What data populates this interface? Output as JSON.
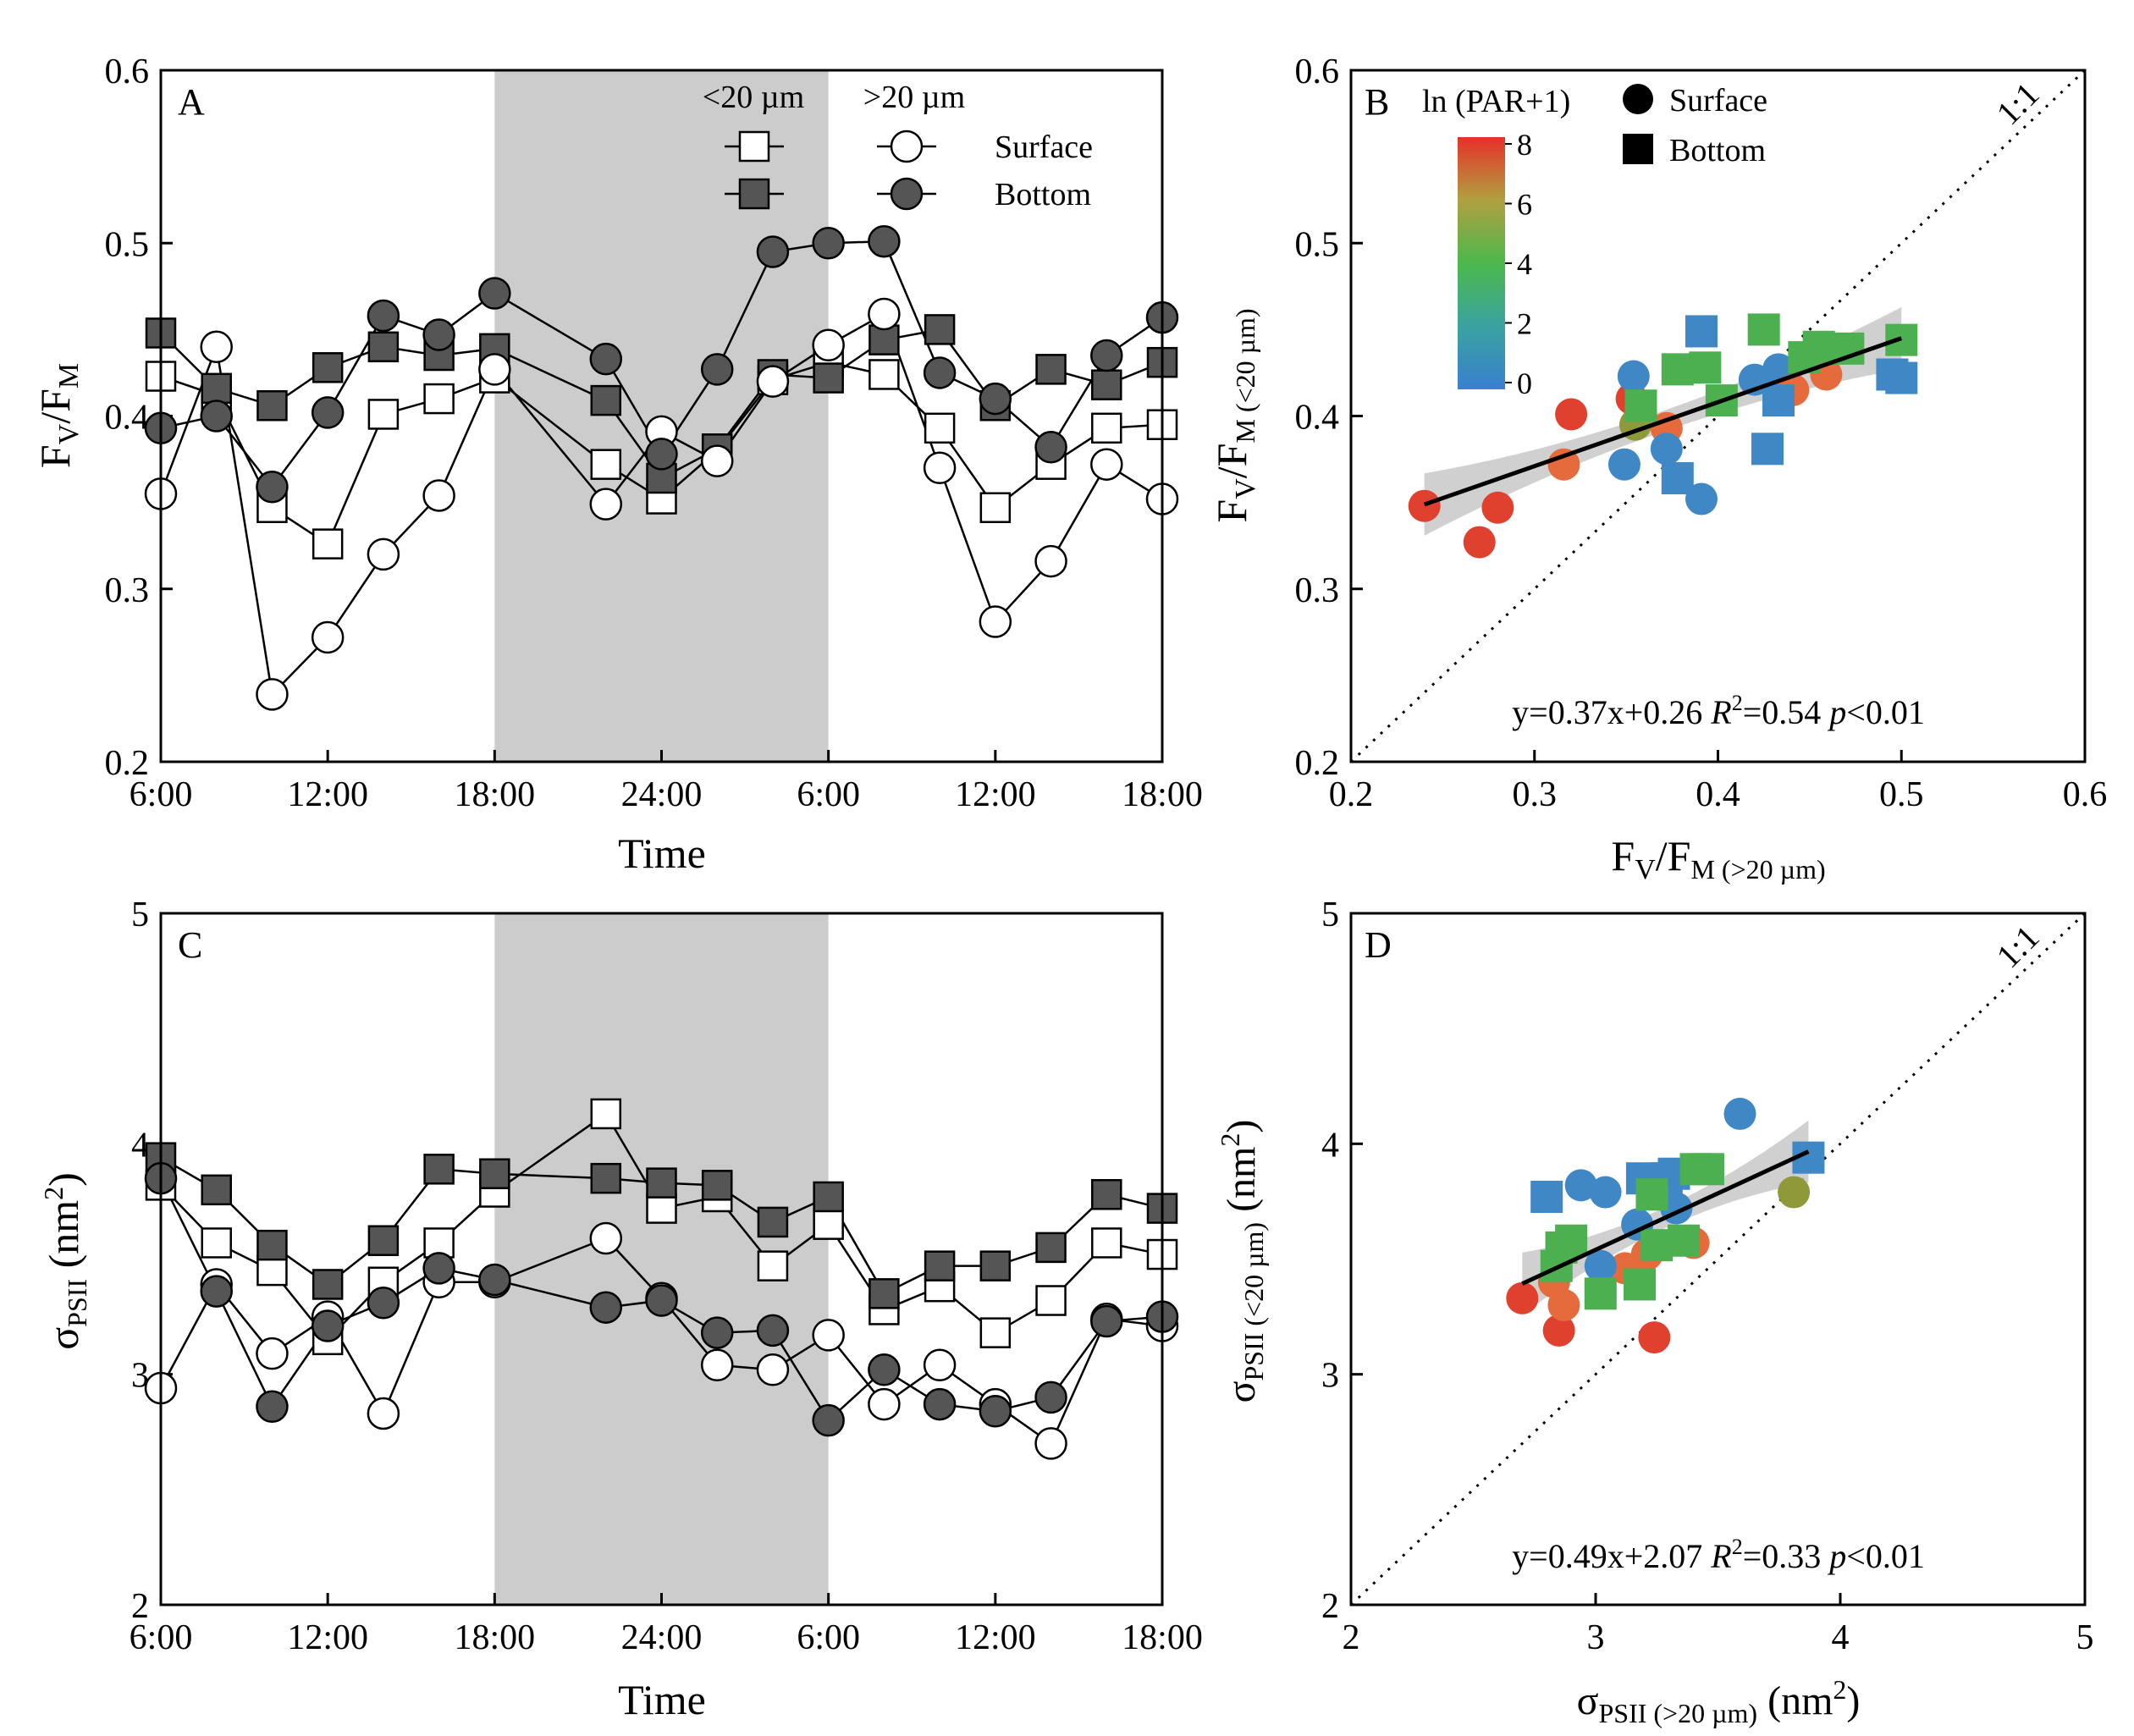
{
  "figure": {
    "legend_a": {
      "small_header": "<20 µm",
      "large_header": ">20 µm",
      "surface": "Surface",
      "bottom": "Bottom"
    },
    "legend_b": {
      "colorbar_title": "ln (PAR+1)",
      "colorbar_ticks": [
        "0",
        "2",
        "4",
        "6",
        "8"
      ],
      "surface": "Surface",
      "bottom": "Bottom"
    },
    "colors": {
      "shade": "#cccccc",
      "dark_marker": "#555555",
      "white_marker": "#ffffff",
      "blue": "#3f88c5",
      "green": "#4caf50",
      "orange": "#e56b3c",
      "red": "#e0402e",
      "olive": "#8e9a3a",
      "band": "#c8c8c8"
    }
  },
  "chart_data": [
    {
      "panel": "A",
      "type": "line",
      "ylabel": "FV/FM",
      "xlabel": "Time",
      "ylim": [
        0.2,
        0.6
      ],
      "yticks": [
        "0.2",
        "0.3",
        "0.4",
        "0.5",
        "0.6"
      ],
      "xticks": [
        "6:00",
        "12:00",
        "18:00",
        "24:00",
        "6:00",
        "12:00",
        "18:00"
      ],
      "x_hours": [
        6,
        8,
        10,
        12,
        14,
        16,
        18,
        22,
        24,
        26,
        28,
        30,
        32,
        34,
        36,
        38,
        40,
        42
      ],
      "night_shade_hours": [
        18,
        30
      ],
      "series": [
        {
          "name": "<20 µm Surface",
          "marker": "square",
          "fill": "white",
          "values": [
            0.423,
            0.412,
            0.347,
            0.326,
            0.401,
            0.41,
            0.422,
            0.372,
            0.352,
            0.38,
            0.421,
            0.431,
            0.424,
            0.393,
            0.347,
            0.372,
            0.393,
            0.395
          ]
        },
        {
          "name": "<20 µm Bottom",
          "marker": "square",
          "fill": "dark",
          "values": [
            0.448,
            0.416,
            0.406,
            0.428,
            0.44,
            0.435,
            0.439,
            0.409,
            0.364,
            0.381,
            0.424,
            0.422,
            0.444,
            0.45,
            0.406,
            0.427,
            0.418,
            0.431
          ]
        },
        {
          "name": ">20 µm Surface",
          "marker": "circle",
          "fill": "white",
          "values": [
            0.355,
            0.44,
            0.239,
            0.272,
            0.32,
            0.354,
            0.427,
            0.349,
            0.391,
            0.374,
            0.42,
            0.441,
            0.459,
            0.37,
            0.281,
            0.316,
            0.372,
            0.352
          ]
        },
        {
          "name": ">20 µm Bottom",
          "marker": "circle",
          "fill": "dark",
          "values": [
            0.393,
            0.4,
            0.359,
            0.402,
            0.458,
            0.447,
            0.471,
            0.433,
            0.378,
            0.427,
            0.495,
            0.5,
            0.501,
            0.425,
            0.41,
            0.382,
            0.435,
            0.457
          ]
        }
      ]
    },
    {
      "panel": "B",
      "type": "scatter",
      "xlabel": "FV/FM (>20 µm)",
      "ylabel": "FV/FM (<20 µm)",
      "xlim": [
        0.2,
        0.6
      ],
      "ylim": [
        0.2,
        0.6
      ],
      "xticks": [
        "0.2",
        "0.3",
        "0.4",
        "0.5",
        "0.6"
      ],
      "yticks": [
        "0.2",
        "0.3",
        "0.4",
        "0.5",
        "0.6"
      ],
      "one_to_one_label": "1:1",
      "fit": {
        "slope": 0.37,
        "intercept": 0.26,
        "x_range": [
          0.24,
          0.5
        ]
      },
      "equation": "y=0.37x+0.26",
      "r2_label": "R",
      "r2_value": "=0.54",
      "p_label": "p",
      "p_value": "<0.01",
      "points": [
        {
          "x": 0.24,
          "y": 0.348,
          "m": "circle",
          "c": "red"
        },
        {
          "x": 0.27,
          "y": 0.327,
          "m": "circle",
          "c": "red"
        },
        {
          "x": 0.28,
          "y": 0.347,
          "m": "circle",
          "c": "red"
        },
        {
          "x": 0.32,
          "y": 0.401,
          "m": "circle",
          "c": "red"
        },
        {
          "x": 0.316,
          "y": 0.372,
          "m": "circle",
          "c": "orange"
        },
        {
          "x": 0.353,
          "y": 0.41,
          "m": "circle",
          "c": "red"
        },
        {
          "x": 0.372,
          "y": 0.393,
          "m": "circle",
          "c": "orange"
        },
        {
          "x": 0.354,
          "y": 0.423,
          "m": "circle",
          "c": "blue"
        },
        {
          "x": 0.349,
          "y": 0.372,
          "m": "circle",
          "c": "blue"
        },
        {
          "x": 0.372,
          "y": 0.381,
          "m": "circle",
          "c": "blue"
        },
        {
          "x": 0.391,
          "y": 0.352,
          "m": "circle",
          "c": "blue"
        },
        {
          "x": 0.42,
          "y": 0.421,
          "m": "circle",
          "c": "blue"
        },
        {
          "x": 0.433,
          "y": 0.427,
          "m": "circle",
          "c": "blue"
        },
        {
          "x": 0.441,
          "y": 0.415,
          "m": "circle",
          "c": "orange"
        },
        {
          "x": 0.459,
          "y": 0.424,
          "m": "circle",
          "c": "orange"
        },
        {
          "x": 0.355,
          "y": 0.395,
          "m": "circle",
          "c": "olive"
        },
        {
          "x": 0.358,
          "y": 0.406,
          "m": "square",
          "c": "green"
        },
        {
          "x": 0.378,
          "y": 0.427,
          "m": "square",
          "c": "green"
        },
        {
          "x": 0.393,
          "y": 0.428,
          "m": "square",
          "c": "green"
        },
        {
          "x": 0.402,
          "y": 0.409,
          "m": "square",
          "c": "green"
        },
        {
          "x": 0.425,
          "y": 0.45,
          "m": "square",
          "c": "green"
        },
        {
          "x": 0.447,
          "y": 0.434,
          "m": "square",
          "c": "green"
        },
        {
          "x": 0.455,
          "y": 0.44,
          "m": "square",
          "c": "green"
        },
        {
          "x": 0.5,
          "y": 0.444,
          "m": "square",
          "c": "green"
        },
        {
          "x": 0.471,
          "y": 0.439,
          "m": "square",
          "c": "green"
        },
        {
          "x": 0.378,
          "y": 0.364,
          "m": "square",
          "c": "blue"
        },
        {
          "x": 0.391,
          "y": 0.449,
          "m": "square",
          "c": "blue"
        },
        {
          "x": 0.433,
          "y": 0.409,
          "m": "square",
          "c": "blue"
        },
        {
          "x": 0.427,
          "y": 0.381,
          "m": "square",
          "c": "blue"
        },
        {
          "x": 0.495,
          "y": 0.424,
          "m": "square",
          "c": "blue"
        },
        {
          "x": 0.5,
          "y": 0.422,
          "m": "square",
          "c": "blue"
        }
      ]
    },
    {
      "panel": "C",
      "type": "line",
      "ylabel": "σPSII (nm2)",
      "xlabel": "Time",
      "ylim": [
        2,
        5
      ],
      "yticks": [
        "2",
        "3",
        "4",
        "5"
      ],
      "xticks": [
        "6:00",
        "12:00",
        "18:00",
        "24:00",
        "6:00",
        "12:00",
        "18:00"
      ],
      "x_hours": [
        6,
        8,
        10,
        12,
        14,
        16,
        18,
        22,
        24,
        26,
        28,
        30,
        32,
        34,
        36,
        38,
        40,
        42
      ],
      "night_shade_hours": [
        18,
        30
      ],
      "series": [
        {
          "name": "<20 µm Surface",
          "marker": "square",
          "fill": "white",
          "values": [
            3.82,
            3.57,
            3.45,
            3.15,
            3.4,
            3.57,
            3.79,
            4.13,
            3.72,
            3.77,
            3.47,
            3.65,
            3.28,
            3.38,
            3.18,
            3.32,
            3.57,
            3.52
          ]
        },
        {
          "name": "<20 µm Bottom",
          "marker": "square",
          "fill": "dark",
          "values": [
            3.94,
            3.8,
            3.56,
            3.39,
            3.58,
            3.89,
            3.87,
            3.85,
            3.83,
            3.82,
            3.66,
            3.77,
            3.35,
            3.47,
            3.47,
            3.55,
            3.78,
            3.72
          ]
        },
        {
          "name": ">20 µm Surface",
          "marker": "circle",
          "fill": "white",
          "values": [
            2.94,
            3.39,
            3.09,
            3.25,
            2.83,
            3.4,
            3.4,
            3.59,
            3.33,
            3.04,
            3.02,
            3.17,
            2.87,
            3.04,
            2.87,
            2.7,
            3.24,
            3.21
          ]
        },
        {
          "name": ">20 µm Bottom",
          "marker": "circle",
          "fill": "dark",
          "values": [
            3.85,
            3.36,
            2.86,
            3.21,
            3.31,
            3.46,
            3.41,
            3.29,
            3.32,
            3.18,
            3.19,
            2.8,
            3.02,
            2.87,
            2.84,
            2.9,
            3.23,
            3.25
          ]
        }
      ]
    },
    {
      "panel": "D",
      "type": "scatter",
      "xlabel": "σPSII (>20 µm) (nm2)",
      "ylabel": "σPSII (<20 µm) (nm2)",
      "xlim": [
        2,
        5
      ],
      "ylim": [
        2,
        5
      ],
      "xticks": [
        "2",
        "3",
        "4",
        "5"
      ],
      "yticks": [
        "2",
        "3",
        "4",
        "5"
      ],
      "one_to_one_label": "1:1",
      "fit": {
        "slope": 0.49,
        "intercept": 2.07,
        "x_range": [
          2.7,
          3.87
        ]
      },
      "equation": "y=0.49x+2.07",
      "r2_label": "R",
      "r2_value": "=0.33",
      "p_label": "p",
      "p_value": "<0.01",
      "points": [
        {
          "x": 2.7,
          "y": 3.33,
          "m": "circle",
          "c": "red"
        },
        {
          "x": 2.85,
          "y": 3.19,
          "m": "circle",
          "c": "red"
        },
        {
          "x": 2.87,
          "y": 3.3,
          "m": "circle",
          "c": "orange"
        },
        {
          "x": 3.24,
          "y": 3.16,
          "m": "circle",
          "c": "red"
        },
        {
          "x": 3.12,
          "y": 3.46,
          "m": "circle",
          "c": "orange"
        },
        {
          "x": 3.4,
          "y": 3.57,
          "m": "circle",
          "c": "orange"
        },
        {
          "x": 3.21,
          "y": 3.52,
          "m": "circle",
          "c": "orange"
        },
        {
          "x": 2.83,
          "y": 3.4,
          "m": "circle",
          "c": "orange"
        },
        {
          "x": 2.94,
          "y": 3.82,
          "m": "circle",
          "c": "blue"
        },
        {
          "x": 3.04,
          "y": 3.79,
          "m": "circle",
          "c": "blue"
        },
        {
          "x": 3.59,
          "y": 4.13,
          "m": "circle",
          "c": "blue"
        },
        {
          "x": 3.17,
          "y": 3.65,
          "m": "circle",
          "c": "blue"
        },
        {
          "x": 3.33,
          "y": 3.72,
          "m": "circle",
          "c": "blue"
        },
        {
          "x": 3.02,
          "y": 3.47,
          "m": "circle",
          "c": "blue"
        },
        {
          "x": 3.81,
          "y": 3.79,
          "m": "circle",
          "c": "olive"
        },
        {
          "x": 2.8,
          "y": 3.77,
          "m": "square",
          "c": "blue"
        },
        {
          "x": 3.19,
          "y": 3.85,
          "m": "square",
          "c": "blue"
        },
        {
          "x": 3.29,
          "y": 3.85,
          "m": "square",
          "c": "blue"
        },
        {
          "x": 3.32,
          "y": 3.87,
          "m": "square",
          "c": "blue"
        },
        {
          "x": 3.87,
          "y": 3.94,
          "m": "square",
          "c": "blue"
        },
        {
          "x": 2.86,
          "y": 3.55,
          "m": "square",
          "c": "green"
        },
        {
          "x": 2.9,
          "y": 3.58,
          "m": "square",
          "c": "green"
        },
        {
          "x": 2.84,
          "y": 3.47,
          "m": "square",
          "c": "green"
        },
        {
          "x": 3.02,
          "y": 3.35,
          "m": "square",
          "c": "green"
        },
        {
          "x": 3.18,
          "y": 3.39,
          "m": "square",
          "c": "green"
        },
        {
          "x": 3.23,
          "y": 3.78,
          "m": "square",
          "c": "green"
        },
        {
          "x": 3.25,
          "y": 3.56,
          "m": "square",
          "c": "green"
        },
        {
          "x": 3.41,
          "y": 3.89,
          "m": "square",
          "c": "green"
        },
        {
          "x": 3.46,
          "y": 3.89,
          "m": "square",
          "c": "green"
        },
        {
          "x": 3.36,
          "y": 3.58,
          "m": "square",
          "c": "green"
        }
      ]
    }
  ]
}
